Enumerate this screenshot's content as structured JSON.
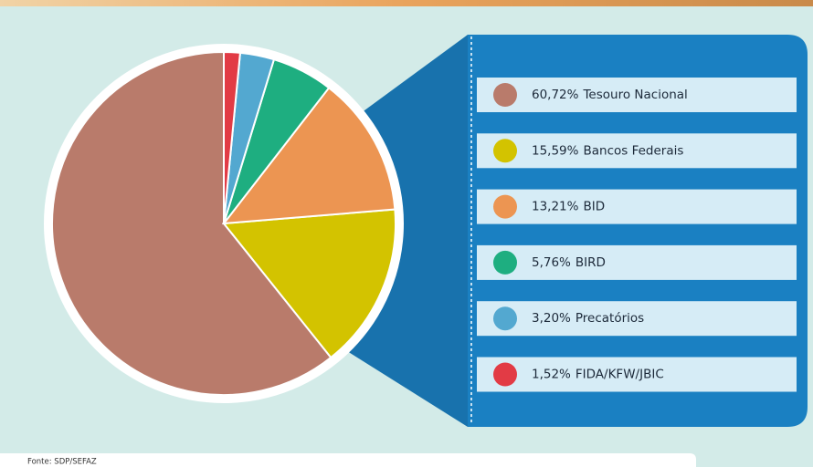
{
  "chart_data": {
    "type": "pie",
    "categories": [
      "Tesouro Nacional",
      "Bancos Federais",
      "BID",
      "BIRD",
      "Precatórios",
      "FIDA/KFW/JBIC"
    ],
    "values": [
      60.72,
      15.59,
      13.21,
      5.76,
      3.2,
      1.52
    ],
    "value_labels": [
      "60,72%",
      "15,59%",
      "13,21%",
      "5,76%",
      "3,20%",
      "1,52%"
    ],
    "colors": [
      "#b97b6b",
      "#d3c300",
      "#ec9552",
      "#1eae80",
      "#53a8d0",
      "#e23b45"
    ],
    "source": "Fonte: SDP/SEFAZ"
  }
}
